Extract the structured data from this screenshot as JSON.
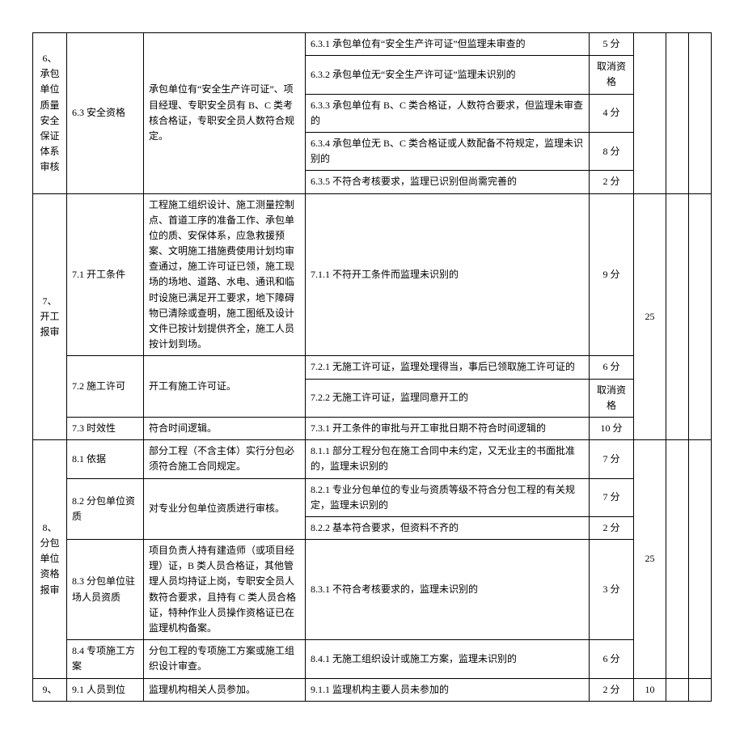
{
  "sections": {
    "s6": {
      "title": "6、承包单位质量安全保证体系审核"
    },
    "s7": {
      "title": "7、开工报审",
      "total": "25"
    },
    "s8": {
      "title": "8、分包单位资格报审",
      "total": "25"
    },
    "s9": {
      "title": "9、",
      "total": "10"
    }
  },
  "rows": [
    {
      "item": "6.3 安全资格",
      "req": "承包单位有“安全生产许可证”、项目经理、专职安全员有 B、C 类考核合格证，专职安全员人数符合规定。",
      "detail": "6.3.1 承包单位有“安全生产许可证”但监理未审查的",
      "score": "5 分"
    },
    {
      "detail": "6.3.2 承包单位无“安全生产许可证”监理未识别的",
      "score": "取消资格"
    },
    {
      "detail": "6.3.3 承包单位有 B、C 类合格证，人数符合要求，但监理未审查的",
      "score": "4 分"
    },
    {
      "detail": "6.3.4 承包单位无 B、C 类合格证或人数配备不符规定，监理未识别的",
      "score": "8 分"
    },
    {
      "detail": "6.3.5 不符合考核要求，监理已识别但尚需完善的",
      "score": "2 分"
    },
    {
      "item": "7.1 开工条件",
      "req": "工程施工组织设计、施工测量控制点、首道工序的准备工作、承包单位的质、安保体系，应急救援预案、文明施工措施费使用计划均审查通过，施工许可证已领，施工现场的场地、道路、水电、通讯和临时设施已满足开工要求，地下障碍物已清除或查明，施工图纸及设计文件已按计划提供齐全，施工人员按计划到场。",
      "detail": "7.1.1 不符开工条件而监理未识别的",
      "score": "9 分"
    },
    {
      "item": "7.2 施工许可",
      "req": "开工有施工许可证。",
      "detail": "7.2.1 无施工许可证，监理处理得当，事后已领取施工许可证的",
      "score": "6 分"
    },
    {
      "detail": "7.2.2 无施工许可证，监理同意开工的",
      "score": "取消资格"
    },
    {
      "item": "7.3 时效性",
      "req": "符合时间逻辑。",
      "detail": "7.3.1 开工条件的审批与开工审批日期不符合时间逻辑的",
      "score": "10 分"
    },
    {
      "item": "8.1 依据",
      "req": "部分工程（不含主体）实行分包必须符合施工合同规定。",
      "detail": "8.1.1 部分工程分包在施工合同中未约定，又无业主的书面批准的，监理未识别的",
      "score": "7 分"
    },
    {
      "item": "8.2 分包单位资质",
      "req": "对专业分包单位资质进行审核。",
      "detail": "8.2.1 专业分包单位的专业与资质等级不符合分包工程的有关规定，监理未识别的",
      "score": "7 分"
    },
    {
      "detail": "8.2.2 基本符合要求，但资料不齐的",
      "score": "2 分"
    },
    {
      "item": "8.3 分包单位驻场人员资质",
      "req": "项目负责人持有建造师（或项目经理）证，B 类人员合格证，其他管理人员均持证上岗，专职安全员人数符合要求，且持有 C 类人员合格证，特种作业人员操作资格证已在监理机构备案。",
      "detail": "8.3.1 不符合考核要求的，监理未识别的",
      "score": "3 分"
    },
    {
      "item": "8.4 专项施工方案",
      "req": "分包工程的专项施工方案或施工组织设计审查。",
      "detail": "8.4.1 无施工组织设计或施工方案，监理未识别的",
      "score": "6 分"
    },
    {
      "item": "9.1 人员到位",
      "req": "监理机构相关人员参加。",
      "detail": "9.1.1 监理机构主要人员未参加的",
      "score": "2 分"
    }
  ]
}
